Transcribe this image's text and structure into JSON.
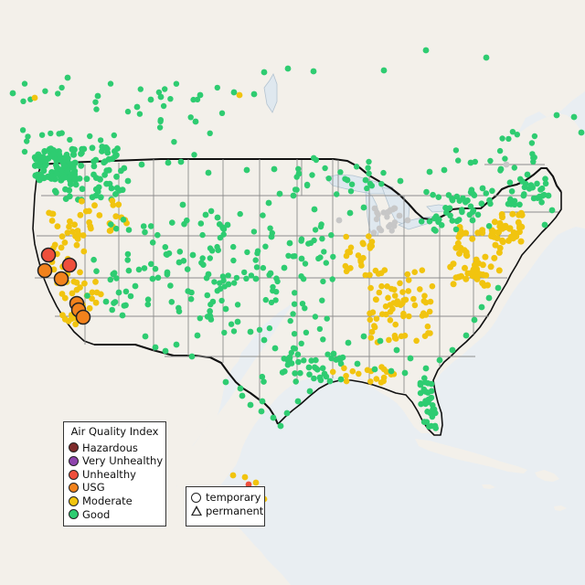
{
  "map": {
    "title": "",
    "colors": {
      "ocean": "#e9eef2",
      "land": "#f3f0ea",
      "lakes": "#dfe8ef",
      "international_border": "#111111",
      "state_border": "#8d8d8d"
    }
  },
  "legend": {
    "aqi_title": "Air Quality Index",
    "categories": [
      {
        "label": "Hazardous",
        "color": "#7e2b2b"
      },
      {
        "label": "Very Unhealthy",
        "color": "#8e44ad"
      },
      {
        "label": "Unhealthy",
        "color": "#ef4f3c"
      },
      {
        "label": "USG",
        "color": "#f2821c"
      },
      {
        "label": "Moderate",
        "color": "#f1c40f"
      },
      {
        "label": "Good",
        "color": "#2ecc71"
      }
    ],
    "monitor_types": [
      {
        "label": "temporary",
        "icon": "circle-icon"
      },
      {
        "label": "permanent",
        "icon": "triangle-icon"
      }
    ]
  },
  "stations": {
    "highlighted": [
      {
        "category": "Unhealthy"
      },
      {
        "category": "Unhealthy"
      },
      {
        "category": "USG"
      },
      {
        "category": "USG"
      },
      {
        "category": "USG"
      },
      {
        "category": "USG"
      },
      {
        "category": "USG"
      }
    ]
  }
}
